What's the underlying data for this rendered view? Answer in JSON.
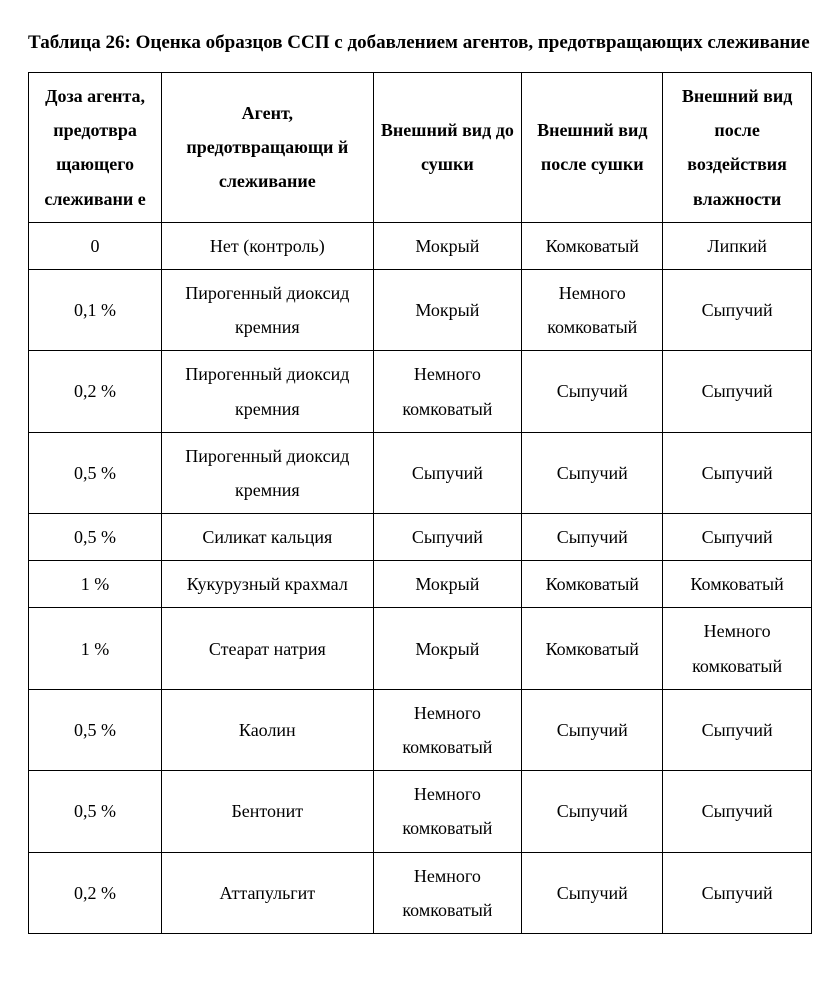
{
  "title": "Таблица 26: Оценка образцов ССП с добавлением агентов, предотвращающих слеживание",
  "table": {
    "columns": [
      "Доза агента, предотвра щающего слеживани е",
      "Агент, предотвращающи й слеживание",
      "Внешний вид до сушки",
      "Внешний вид после сушки",
      "Внешний вид после воздействия влажности"
    ],
    "rows": [
      [
        "0",
        "Нет (контроль)",
        "Мокрый",
        "Комковатый",
        "Липкий"
      ],
      [
        "0,1 %",
        "Пирогенный диоксид кремния",
        "Мокрый",
        "Немного комковатый",
        "Сыпучий"
      ],
      [
        "0,2 %",
        "Пирогенный диоксид кремния",
        "Немного комковатый",
        "Сыпучий",
        "Сыпучий"
      ],
      [
        "0,5 %",
        "Пирогенный диоксид кремния",
        "Сыпучий",
        "Сыпучий",
        "Сыпучий"
      ],
      [
        "0,5 %",
        "Силикат кальция",
        "Сыпучий",
        "Сыпучий",
        "Сыпучий"
      ],
      [
        "1 %",
        "Кукурузный крахмал",
        "Мокрый",
        "Комковатый",
        "Комковатый"
      ],
      [
        "1 %",
        "Стеарат натрия",
        "Мокрый",
        "Комковатый",
        "Немного комковатый"
      ],
      [
        "0,5 %",
        "Каолин",
        "Немного комковатый",
        "Сыпучий",
        "Сыпучий"
      ],
      [
        "0,5 %",
        "Бентонит",
        "Немного комковатый",
        "Сыпучий",
        "Сыпучий"
      ],
      [
        "0,2 %",
        "Аттапульгит",
        "Немного комковатый",
        "Сыпучий",
        "Сыпучий"
      ]
    ]
  }
}
